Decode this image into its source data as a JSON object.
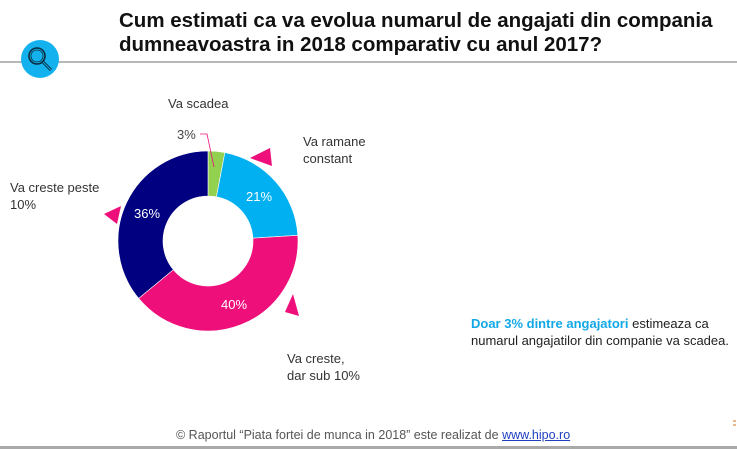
{
  "header": {
    "title_line1": "Cum estimati ca va evolua numarul de angajati din compania",
    "title_line2": "dumneavoastra in 2018 comparativ cu anul 2017?",
    "icon": "search-icon"
  },
  "chart_data": {
    "type": "pie",
    "subtype": "donut",
    "title": "Cum estimati ca va evolua numarul de angajati din compania dumneavoastra in 2018 comparativ cu anul 2017?",
    "categories": [
      "Va scadea",
      "Va ramane constant",
      "Va creste, dar sub 10%",
      "Va creste peste 10%"
    ],
    "values": [
      3,
      21,
      40,
      36
    ],
    "value_labels": [
      "3%",
      "21%",
      "40%",
      "36%"
    ],
    "unit": "%",
    "colors": [
      "#92d050",
      "#00b0f0",
      "#ee0f7b",
      "#000080"
    ]
  },
  "labels": {
    "scadea": "Va scadea",
    "ramane_line1": "Va ramane",
    "ramane_line2": "constant",
    "creste_peste_line1": "Va creste peste",
    "creste_peste_line2": "10%",
    "creste_sub_line1": "Va creste,",
    "creste_sub_line2": "dar sub 10%"
  },
  "callout": {
    "highlight": "Doar 3% dintre angajatori",
    "rest_line1": " estimeaza ca",
    "line2": "numarul angajatilor din companie va scadea.",
    "highlight_color": "#13a8e6"
  },
  "pointer_color": "#ee0f7b",
  "footer": {
    "text": "© Raportul “Piata fortei de munca in 2018” este realizat de ",
    "link": "www.hipo.ro"
  }
}
